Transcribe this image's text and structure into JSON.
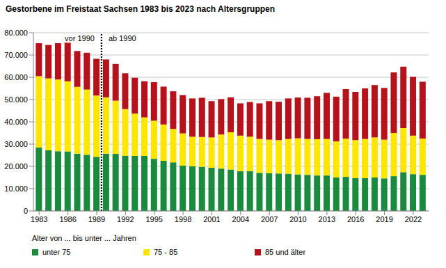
{
  "chart_data": {
    "type": "bar",
    "title": "Gestorbene im Freistaat Sachsen 1983 bis 2023 nach Altersgruppen",
    "x": [
      1983,
      1984,
      1985,
      1986,
      1987,
      1988,
      1989,
      1990,
      1991,
      1992,
      1993,
      1994,
      1995,
      1996,
      1997,
      1998,
      1999,
      2000,
      2001,
      2002,
      2003,
      2004,
      2005,
      2006,
      2007,
      2008,
      2009,
      2010,
      2011,
      2012,
      2013,
      2014,
      2015,
      2016,
      2017,
      2018,
      2019,
      2020,
      2021,
      2022,
      2023
    ],
    "xlim": [
      1982.4,
      2023.6
    ],
    "xticks": [
      1983,
      1986,
      1989,
      1992,
      1995,
      1998,
      2001,
      2004,
      2007,
      2010,
      2013,
      2016,
      2019,
      2022
    ],
    "ylim": [
      0,
      80000
    ],
    "yticks": [
      0,
      {
        "value": 10000,
        "label": "10.000"
      },
      {
        "value": 20000,
        "label": "20.000"
      },
      {
        "value": 30000,
        "label": "30.000"
      },
      {
        "value": 40000,
        "label": "40.000"
      },
      {
        "value": 50000,
        "label": "50.000"
      },
      {
        "value": 60000,
        "label": "60.000"
      },
      {
        "value": 70000,
        "label": "70.000"
      },
      {
        "value": 80000,
        "label": "80.000"
      }
    ],
    "grid": true,
    "stacked": true,
    "legend": "bottom",
    "legend_title": "Alter von ... bis unter ... Jahren",
    "annotations": [
      {
        "text": "vor 1990",
        "x": 1989.5,
        "side": "left"
      },
      {
        "text": "ab 1990",
        "x": 1989.5,
        "side": "right"
      }
    ],
    "series": [
      {
        "name": "unter 75",
        "color": "#1a8a3e",
        "values": [
          28500,
          27300,
          26800,
          26700,
          25700,
          25200,
          24300,
          25700,
          25600,
          24800,
          24700,
          24700,
          23400,
          22500,
          21800,
          20300,
          20000,
          19800,
          19400,
          19000,
          18600,
          17800,
          17800,
          17100,
          16900,
          16800,
          16700,
          16400,
          16200,
          15900,
          15900,
          15000,
          15300,
          14800,
          14700,
          15000,
          14600,
          15600,
          17400,
          16500,
          16200
        ]
      },
      {
        "name": "75 - 85",
        "color": "#ffe600",
        "values": [
          32000,
          32200,
          32200,
          31500,
          30000,
          29300,
          27500,
          25300,
          23900,
          20900,
          19000,
          17300,
          17100,
          16300,
          15000,
          14500,
          13300,
          13400,
          13600,
          15300,
          16700,
          16000,
          15500,
          15200,
          15100,
          15000,
          15600,
          16200,
          16100,
          16300,
          16400,
          16200,
          17100,
          17000,
          17600,
          18000,
          17400,
          19400,
          19800,
          17300,
          16300
        ]
      },
      {
        "name": "85 und älter",
        "color": "#b5121b",
        "values": [
          14800,
          15000,
          16300,
          17300,
          16100,
          16500,
          16500,
          17000,
          16500,
          16100,
          16100,
          16200,
          17300,
          17000,
          16900,
          17200,
          17200,
          17600,
          16300,
          15900,
          15700,
          14500,
          15600,
          16000,
          17300,
          17200,
          18200,
          18300,
          18500,
          19300,
          20700,
          20100,
          22300,
          21600,
          22700,
          23500,
          23200,
          27200,
          27600,
          26400,
          25500
        ]
      }
    ]
  }
}
